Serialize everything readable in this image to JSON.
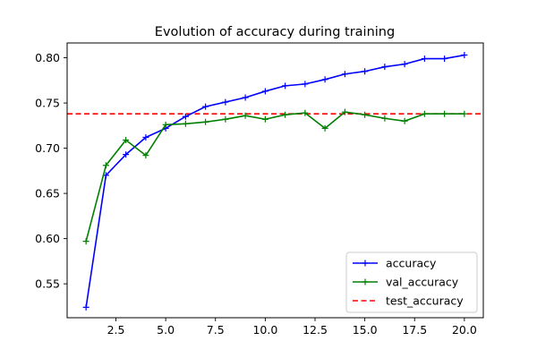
{
  "chart_data": {
    "type": "line",
    "title": "Evolution of accuracy during training",
    "xlabel": "",
    "ylabel": "",
    "xlim": [
      0.05,
      20.95
    ],
    "ylim": [
      0.5125,
      0.8164
    ],
    "xticks": [
      2.5,
      5.0,
      7.5,
      10.0,
      12.5,
      15.0,
      17.5,
      20.0
    ],
    "xtick_labels": [
      "2.5",
      "5.0",
      "7.5",
      "10.0",
      "12.5",
      "15.0",
      "17.5",
      "20.0"
    ],
    "yticks": [
      0.55,
      0.6,
      0.65,
      0.7,
      0.75,
      0.8
    ],
    "ytick_labels": [
      "0.55",
      "0.60",
      "0.65",
      "0.70",
      "0.75",
      "0.80"
    ],
    "grid": false,
    "legend_position": "lower-right",
    "x": [
      1,
      2,
      3,
      4,
      5,
      6,
      7,
      8,
      9,
      10,
      11,
      12,
      13,
      14,
      15,
      16,
      17,
      18,
      19,
      20
    ],
    "series": [
      {
        "name": "accuracy",
        "color": "#0000ff",
        "marker": "plus",
        "values": [
          0.524,
          0.67,
          0.693,
          0.712,
          0.722,
          0.735,
          0.746,
          0.751,
          0.756,
          0.763,
          0.769,
          0.771,
          0.776,
          0.782,
          0.785,
          0.79,
          0.793,
          0.799,
          0.799,
          0.803
        ]
      },
      {
        "name": "val_accuracy",
        "color": "#008000",
        "marker": "plus",
        "values": [
          0.597,
          0.681,
          0.709,
          0.692,
          0.726,
          0.727,
          0.729,
          0.732,
          0.736,
          0.732,
          0.737,
          0.739,
          0.722,
          0.74,
          0.737,
          0.733,
          0.73,
          0.738,
          0.738,
          0.738
        ]
      }
    ],
    "reference_lines": [
      {
        "name": "test_accuracy",
        "y": 0.738,
        "color": "#ff0000",
        "style": "dashed"
      }
    ]
  }
}
